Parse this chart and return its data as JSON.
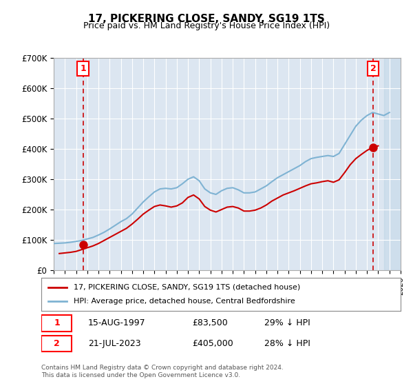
{
  "title": "17, PICKERING CLOSE, SANDY, SG19 1TS",
  "subtitle": "Price paid vs. HM Land Registry's House Price Index (HPI)",
  "ylabel": "",
  "xlabel": "",
  "bg_color": "#dce6f1",
  "plot_bg_color": "#dce6f1",
  "hpi_color": "#7fb3d3",
  "price_color": "#cc0000",
  "dashed_line_color": "#cc0000",
  "point1_year": 1997.62,
  "point1_price": 83500,
  "point2_year": 2023.55,
  "point2_price": 405000,
  "xmin": 1995,
  "xmax": 2026,
  "ymin": 0,
  "ymax": 700000,
  "legend_label_red": "17, PICKERING CLOSE, SANDY, SG19 1TS (detached house)",
  "legend_label_blue": "HPI: Average price, detached house, Central Bedfordshire",
  "annotation1_label": "1",
  "annotation2_label": "2",
  "table_row1": [
    "1",
    "15-AUG-1997",
    "£83,500",
    "29% ↓ HPI"
  ],
  "table_row2": [
    "2",
    "21-JUL-2023",
    "£405,000",
    "28% ↓ HPI"
  ],
  "footer": "Contains HM Land Registry data © Crown copyright and database right 2024.\nThis data is licensed under the Open Government Licence v3.0.",
  "hpi_years": [
    1995,
    1995.5,
    1996,
    1996.5,
    1997,
    1997.5,
    1998,
    1998.5,
    1999,
    1999.5,
    2000,
    2000.5,
    2001,
    2001.5,
    2002,
    2002.5,
    2003,
    2003.5,
    2004,
    2004.5,
    2005,
    2005.5,
    2006,
    2006.5,
    2007,
    2007.5,
    2008,
    2008.5,
    2009,
    2009.5,
    2010,
    2010.5,
    2011,
    2011.5,
    2012,
    2012.5,
    2013,
    2013.5,
    2014,
    2014.5,
    2015,
    2015.5,
    2016,
    2016.5,
    2017,
    2017.5,
    2018,
    2018.5,
    2019,
    2019.5,
    2020,
    2020.5,
    2021,
    2021.5,
    2022,
    2022.5,
    2023,
    2023.5,
    2024,
    2024.5,
    2025
  ],
  "hpi_values": [
    88000,
    89000,
    90000,
    92000,
    95000,
    98000,
    103000,
    108000,
    116000,
    125000,
    136000,
    148000,
    160000,
    170000,
    185000,
    205000,
    225000,
    242000,
    258000,
    268000,
    270000,
    268000,
    272000,
    285000,
    300000,
    308000,
    295000,
    268000,
    255000,
    250000,
    262000,
    270000,
    272000,
    265000,
    255000,
    255000,
    258000,
    268000,
    278000,
    292000,
    305000,
    315000,
    325000,
    335000,
    345000,
    358000,
    368000,
    372000,
    375000,
    378000,
    375000,
    385000,
    415000,
    445000,
    475000,
    495000,
    510000,
    520000,
    515000,
    510000,
    520000
  ],
  "price_years": [
    1995.5,
    1996,
    1996.5,
    1997,
    1997.5,
    1998,
    1998.5,
    1999,
    1999.5,
    2000,
    2000.5,
    2001,
    2001.5,
    2002,
    2002.5,
    2003,
    2003.5,
    2004,
    2004.5,
    2005,
    2005.5,
    2006,
    2006.5,
    2007,
    2007.5,
    2008,
    2008.5,
    2009,
    2009.5,
    2010,
    2010.5,
    2011,
    2011.5,
    2012,
    2012.5,
    2013,
    2013.5,
    2014,
    2014.5,
    2015,
    2015.5,
    2016,
    2016.5,
    2017,
    2017.5,
    2018,
    2018.5,
    2019,
    2019.5,
    2020,
    2020.5,
    2021,
    2021.5,
    2022,
    2022.5,
    2023,
    2023.5,
    2024
  ],
  "price_values": [
    55000,
    57000,
    59000,
    62000,
    68000,
    74000,
    80000,
    88000,
    98000,
    108000,
    118000,
    128000,
    138000,
    152000,
    168000,
    185000,
    198000,
    210000,
    215000,
    212000,
    208000,
    212000,
    222000,
    240000,
    248000,
    235000,
    210000,
    198000,
    192000,
    200000,
    208000,
    210000,
    205000,
    195000,
    195000,
    198000,
    205000,
    215000,
    228000,
    238000,
    248000,
    255000,
    262000,
    270000,
    278000,
    285000,
    288000,
    292000,
    295000,
    290000,
    298000,
    322000,
    348000,
    368000,
    382000,
    395000,
    405000,
    410000
  ]
}
